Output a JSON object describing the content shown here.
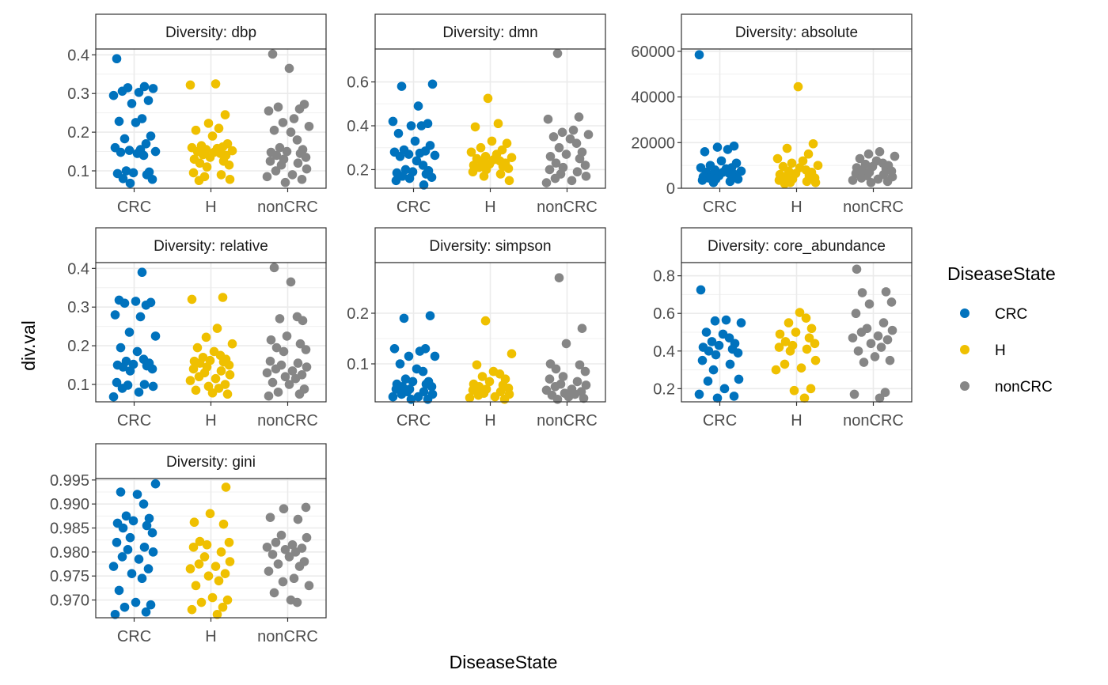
{
  "chart_data": {
    "type": "scatter",
    "xlabel": "DiseaseState",
    "ylabel": "div.val",
    "categories": [
      "CRC",
      "H",
      "nonCRC"
    ],
    "legend": {
      "title": "DiseaseState",
      "placement": "right",
      "entries": [
        {
          "label": "CRC",
          "color": "#0072BD"
        },
        {
          "label": "H",
          "color": "#EFC000"
        },
        {
          "label": "nonCRC",
          "color": "#868686"
        }
      ]
    },
    "grid": true,
    "panels": [
      {
        "strip": "Diversity: dbp",
        "ylim": [
          0.055,
          0.415
        ],
        "yticks": [
          0.1,
          0.2,
          0.3,
          0.4
        ],
        "yticklabels": [
          "0.1",
          "0.2",
          "0.3",
          "0.4"
        ],
        "points": {
          "CRC": [
            0.39,
            0.318,
            0.315,
            0.313,
            0.306,
            0.303,
            0.295,
            0.282,
            0.274,
            0.235,
            0.228,
            0.225,
            0.19,
            0.183,
            0.17,
            0.16,
            0.155,
            0.153,
            0.15,
            0.148,
            0.145,
            0.14,
            0.1,
            0.097,
            0.095,
            0.093,
            0.09,
            0.08,
            0.078,
            0.068
          ],
          "H": [
            0.325,
            0.322,
            0.245,
            0.223,
            0.21,
            0.205,
            0.19,
            0.17,
            0.165,
            0.162,
            0.16,
            0.158,
            0.155,
            0.152,
            0.15,
            0.148,
            0.145,
            0.142,
            0.14,
            0.135,
            0.13,
            0.125,
            0.12,
            0.115,
            0.11,
            0.095,
            0.09,
            0.085,
            0.078,
            0.075
          ],
          "nonCRC": [
            0.402,
            0.365,
            0.272,
            0.265,
            0.26,
            0.255,
            0.235,
            0.225,
            0.215,
            0.205,
            0.2,
            0.18,
            0.16,
            0.155,
            0.15,
            0.148,
            0.145,
            0.14,
            0.135,
            0.13,
            0.125,
            0.12,
            0.115,
            0.105,
            0.1,
            0.09,
            0.085,
            0.078,
            0.07
          ]
        }
      },
      {
        "strip": "Diversity: dmn",
        "ylim": [
          0.115,
          0.75
        ],
        "yticks": [
          0.2,
          0.4,
          0.6
        ],
        "yticklabels": [
          "0.2",
          "0.4",
          "0.6"
        ],
        "points": {
          "CRC": [
            0.59,
            0.58,
            0.49,
            0.42,
            0.41,
            0.4,
            0.4,
            0.365,
            0.33,
            0.31,
            0.29,
            0.285,
            0.28,
            0.275,
            0.27,
            0.265,
            0.26,
            0.24,
            0.22,
            0.2,
            0.195,
            0.19,
            0.185,
            0.18,
            0.17,
            0.165,
            0.16,
            0.15,
            0.13
          ],
          "H": [
            0.525,
            0.41,
            0.395,
            0.33,
            0.32,
            0.3,
            0.29,
            0.28,
            0.27,
            0.26,
            0.255,
            0.25,
            0.245,
            0.24,
            0.235,
            0.23,
            0.225,
            0.22,
            0.215,
            0.21,
            0.205,
            0.2,
            0.19,
            0.18,
            0.17,
            0.15
          ],
          "nonCRC": [
            0.73,
            0.44,
            0.43,
            0.38,
            0.37,
            0.36,
            0.35,
            0.34,
            0.32,
            0.3,
            0.28,
            0.27,
            0.26,
            0.25,
            0.23,
            0.22,
            0.21,
            0.2,
            0.19,
            0.18,
            0.17,
            0.16,
            0.15,
            0.14
          ]
        }
      },
      {
        "strip": "Diversity: absolute",
        "ylim": [
          0,
          61000
        ],
        "yticks": [
          0,
          20000,
          40000,
          60000
        ],
        "yticklabels": [
          "0",
          "20000",
          "40000",
          "60000"
        ],
        "points": {
          "CRC": [
            58500,
            18500,
            18000,
            17000,
            16000,
            12000,
            11000,
            10000,
            9000,
            9000,
            8500,
            8000,
            7500,
            7000,
            7000,
            6500,
            6000,
            6000,
            5500,
            5000,
            5000,
            4500,
            4000,
            4000,
            3500,
            3000,
            2500
          ],
          "H": [
            44500,
            19500,
            17500,
            15000,
            13000,
            12000,
            11000,
            10000,
            9500,
            9000,
            8000,
            7500,
            7000,
            6500,
            6000,
            5500,
            5000,
            4500,
            4000,
            3500,
            3000,
            2500,
            2500,
            2000
          ],
          "nonCRC": [
            16000,
            15000,
            14000,
            13000,
            12000,
            11000,
            10500,
            10000,
            9500,
            9000,
            8500,
            8000,
            7500,
            7000,
            6500,
            6000,
            5500,
            5000,
            4500,
            4000,
            3500,
            3000,
            2500
          ]
        }
      },
      {
        "strip": "Diversity: relative",
        "ylim": [
          0.055,
          0.415
        ],
        "yticks": [
          0.1,
          0.2,
          0.3,
          0.4
        ],
        "yticklabels": [
          "0.1",
          "0.2",
          "0.3",
          "0.4"
        ],
        "points": {
          "CRC": [
            0.39,
            0.318,
            0.315,
            0.312,
            0.31,
            0.305,
            0.28,
            0.275,
            0.235,
            0.225,
            0.195,
            0.185,
            0.165,
            0.16,
            0.155,
            0.152,
            0.15,
            0.148,
            0.145,
            0.14,
            0.135,
            0.105,
            0.1,
            0.098,
            0.095,
            0.09,
            0.08,
            0.068
          ],
          "H": [
            0.325,
            0.32,
            0.245,
            0.222,
            0.205,
            0.195,
            0.185,
            0.175,
            0.17,
            0.165,
            0.162,
            0.16,
            0.158,
            0.155,
            0.15,
            0.145,
            0.14,
            0.135,
            0.13,
            0.125,
            0.12,
            0.115,
            0.11,
            0.1,
            0.095,
            0.09,
            0.085,
            0.078,
            0.075
          ],
          "nonCRC": [
            0.402,
            0.365,
            0.275,
            0.27,
            0.265,
            0.225,
            0.215,
            0.205,
            0.195,
            0.19,
            0.185,
            0.16,
            0.155,
            0.15,
            0.145,
            0.14,
            0.135,
            0.13,
            0.125,
            0.12,
            0.115,
            0.105,
            0.1,
            0.088,
            0.08,
            0.075,
            0.07
          ]
        }
      },
      {
        "strip": "Diversity: simpson",
        "ylim": [
          0.025,
          0.3
        ],
        "yticks": [
          0.1,
          0.2
        ],
        "yticklabels": [
          "0.1",
          "0.2"
        ],
        "points": {
          "CRC": [
            0.195,
            0.19,
            0.13,
            0.13,
            0.125,
            0.115,
            0.115,
            0.1,
            0.09,
            0.085,
            0.07,
            0.065,
            0.065,
            0.06,
            0.06,
            0.055,
            0.055,
            0.05,
            0.05,
            0.045,
            0.045,
            0.04,
            0.04,
            0.035,
            0.035,
            0.03,
            0.03
          ],
          "H": [
            0.185,
            0.12,
            0.098,
            0.085,
            0.08,
            0.075,
            0.07,
            0.065,
            0.06,
            0.058,
            0.055,
            0.052,
            0.05,
            0.048,
            0.045,
            0.042,
            0.04,
            0.038,
            0.035,
            0.033,
            0.03
          ],
          "nonCRC": [
            0.27,
            0.17,
            0.14,
            0.1,
            0.098,
            0.09,
            0.085,
            0.075,
            0.07,
            0.065,
            0.06,
            0.058,
            0.055,
            0.05,
            0.048,
            0.045,
            0.042,
            0.04,
            0.038,
            0.035,
            0.032,
            0.03
          ]
        }
      },
      {
        "strip": "Diversity: core_abundance",
        "ylim": [
          0.13,
          0.87
        ],
        "yticks": [
          0.2,
          0.4,
          0.6,
          0.8
        ],
        "yticklabels": [
          "0.2",
          "0.4",
          "0.6",
          "0.8"
        ],
        "points": {
          "CRC": [
            0.725,
            0.565,
            0.56,
            0.55,
            0.5,
            0.49,
            0.47,
            0.45,
            0.44,
            0.43,
            0.42,
            0.41,
            0.4,
            0.39,
            0.38,
            0.35,
            0.33,
            0.3,
            0.25,
            0.24,
            0.2,
            0.17,
            0.16,
            0.15
          ],
          "H": [
            0.605,
            0.575,
            0.55,
            0.52,
            0.5,
            0.49,
            0.47,
            0.45,
            0.44,
            0.43,
            0.42,
            0.41,
            0.4,
            0.35,
            0.33,
            0.31,
            0.3,
            0.2,
            0.19,
            0.15
          ],
          "nonCRC": [
            0.835,
            0.715,
            0.71,
            0.66,
            0.65,
            0.6,
            0.55,
            0.52,
            0.51,
            0.5,
            0.48,
            0.47,
            0.46,
            0.44,
            0.42,
            0.4,
            0.37,
            0.35,
            0.34,
            0.18,
            0.17,
            0.15
          ]
        }
      },
      {
        "strip": "Diversity: gini",
        "ylim": [
          0.9663,
          0.9953
        ],
        "yticks": [
          0.97,
          0.975,
          0.98,
          0.985,
          0.99,
          0.995
        ],
        "yticklabels": [
          "0.970",
          "0.975",
          "0.980",
          "0.985",
          "0.990",
          "0.995"
        ],
        "points": {
          "CRC": [
            0.9942,
            0.9925,
            0.992,
            0.99,
            0.9875,
            0.987,
            0.9865,
            0.986,
            0.9855,
            0.985,
            0.984,
            0.983,
            0.982,
            0.981,
            0.9805,
            0.98,
            0.979,
            0.9785,
            0.977,
            0.9765,
            0.9755,
            0.9745,
            0.972,
            0.9695,
            0.969,
            0.9685,
            0.9675,
            0.967
          ],
          "H": [
            0.9935,
            0.988,
            0.9862,
            0.9858,
            0.9822,
            0.982,
            0.9815,
            0.981,
            0.98,
            0.979,
            0.978,
            0.9775,
            0.977,
            0.9765,
            0.9755,
            0.975,
            0.974,
            0.973,
            0.9705,
            0.97,
            0.9695,
            0.9685,
            0.968,
            0.967
          ],
          "nonCRC": [
            0.9893,
            0.989,
            0.9872,
            0.9868,
            0.9835,
            0.983,
            0.982,
            0.9815,
            0.981,
            0.9808,
            0.9805,
            0.98,
            0.9795,
            0.979,
            0.978,
            0.9775,
            0.977,
            0.976,
            0.9745,
            0.9738,
            0.973,
            0.9715,
            0.97,
            0.9695
          ]
        }
      }
    ]
  }
}
